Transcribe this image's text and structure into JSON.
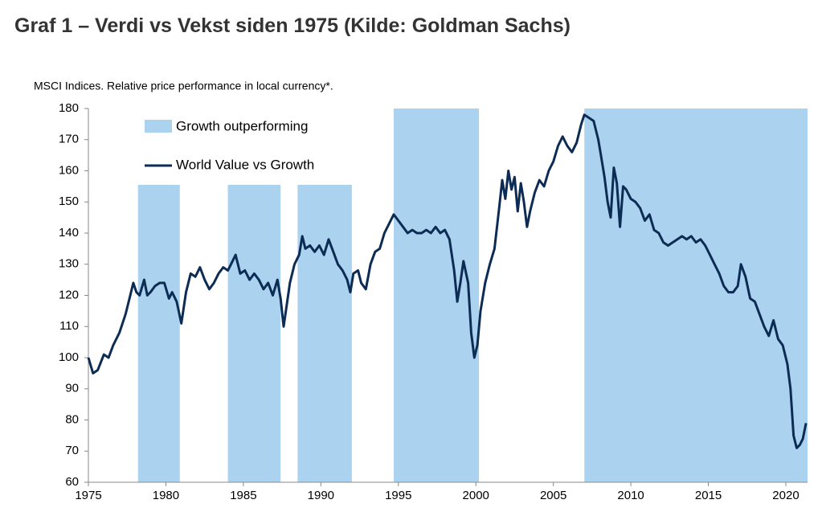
{
  "chart_data": {
    "type": "line",
    "title": "Graf 1 – Verdi vs Vekst siden 1975 (Kilde: Goldman Sachs)",
    "subtitle": "MSCI Indices. Relative price performance in local currency*.",
    "xlim": [
      1975,
      2021.4
    ],
    "xticks": [
      1975,
      1980,
      1985,
      1990,
      1995,
      2000,
      2005,
      2010,
      2015,
      2020
    ],
    "ylim": [
      60,
      180
    ],
    "yticks": [
      60,
      70,
      80,
      90,
      100,
      110,
      120,
      130,
      140,
      150,
      160,
      170,
      180
    ],
    "shaded": {
      "name": "Growth outperforming",
      "color": "#abd3ef",
      "periods": [
        {
          "start": 1978.2,
          "end": 1980.9,
          "top": 155.5
        },
        {
          "start": 1984,
          "end": 1987.4,
          "top": 155.5
        },
        {
          "start": 1988.5,
          "end": 1992,
          "top": 155.5
        },
        {
          "start": 1994.7,
          "end": 2000.2,
          "top": 180
        },
        {
          "start": 2007,
          "end": 2021.4,
          "top": 180
        }
      ]
    },
    "series": [
      {
        "name": "World Value vs Growth",
        "color": "#0d2c54",
        "x": [
          1975.0,
          1975.3,
          1975.6,
          1976.0,
          1976.3,
          1976.6,
          1977.0,
          1977.4,
          1977.7,
          1977.9,
          1978.1,
          1978.3,
          1978.6,
          1978.8,
          1979.0,
          1979.3,
          1979.6,
          1979.9,
          1980.2,
          1980.4,
          1980.7,
          1981.0,
          1981.3,
          1981.6,
          1981.9,
          1982.2,
          1982.5,
          1982.8,
          1983.1,
          1983.4,
          1983.7,
          1984.0,
          1984.3,
          1984.5,
          1984.8,
          1985.1,
          1985.4,
          1985.7,
          1986.0,
          1986.3,
          1986.6,
          1986.9,
          1987.2,
          1987.4,
          1987.6,
          1987.8,
          1988.0,
          1988.3,
          1988.6,
          1988.8,
          1989.0,
          1989.3,
          1989.6,
          1989.9,
          1990.2,
          1990.5,
          1990.8,
          1991.1,
          1991.4,
          1991.7,
          1991.9,
          1992.1,
          1992.4,
          1992.6,
          1992.9,
          1993.2,
          1993.5,
          1993.8,
          1994.1,
          1994.4,
          1994.7,
          1995.0,
          1995.3,
          1995.6,
          1995.9,
          1996.2,
          1996.5,
          1996.8,
          1997.1,
          1997.4,
          1997.7,
          1998.0,
          1998.3,
          1998.6,
          1998.8,
          1999.0,
          1999.2,
          1999.5,
          1999.7,
          1999.9,
          2000.1,
          2000.3,
          2000.6,
          2000.9,
          2001.2,
          2001.5,
          2001.7,
          2001.9,
          2002.1,
          2002.3,
          2002.5,
          2002.7,
          2002.9,
          2003.1,
          2003.3,
          2003.5,
          2003.8,
          2004.1,
          2004.4,
          2004.7,
          2005.0,
          2005.3,
          2005.6,
          2005.9,
          2006.2,
          2006.5,
          2006.8,
          2007.0,
          2007.3,
          2007.6,
          2007.9,
          2008.1,
          2008.3,
          2008.5,
          2008.7,
          2008.9,
          2009.1,
          2009.3,
          2009.5,
          2009.7,
          2010.0,
          2010.3,
          2010.6,
          2010.9,
          2011.2,
          2011.5,
          2011.8,
          2012.1,
          2012.4,
          2012.7,
          2013.0,
          2013.3,
          2013.6,
          2013.9,
          2014.2,
          2014.5,
          2014.8,
          2015.1,
          2015.4,
          2015.7,
          2016.0,
          2016.3,
          2016.6,
          2016.9,
          2017.1,
          2017.4,
          2017.7,
          2018.0,
          2018.3,
          2018.6,
          2018.9,
          2019.2,
          2019.5,
          2019.8,
          2020.1,
          2020.3,
          2020.5,
          2020.7,
          2020.9,
          2021.1,
          2021.3
        ],
        "values": [
          100,
          95,
          96,
          101,
          100,
          104,
          108,
          114,
          120,
          124,
          121,
          120,
          125,
          120,
          121,
          123,
          124,
          124,
          119,
          121,
          118,
          111,
          121,
          127,
          126,
          129,
          125,
          122,
          124,
          127,
          129,
          128,
          131,
          133,
          127,
          128,
          125,
          127,
          125,
          122,
          124,
          120,
          125,
          119,
          110,
          117,
          124,
          130,
          133,
          139,
          135,
          136,
          134,
          136,
          133,
          138,
          134,
          130,
          128,
          125,
          121,
          127,
          128,
          124,
          122,
          130,
          134,
          135,
          140,
          143,
          146,
          144,
          142,
          140,
          141,
          140,
          140,
          141,
          140,
          142,
          140,
          141,
          138,
          128,
          118,
          124,
          131,
          124,
          108,
          100,
          104,
          115,
          124,
          130,
          135,
          148,
          157,
          151,
          160,
          154,
          158,
          147,
          156,
          150,
          142,
          147,
          153,
          157,
          155,
          160,
          163,
          168,
          171,
          168,
          166,
          169,
          175,
          178,
          177,
          176,
          170,
          164,
          158,
          150,
          145,
          161,
          156,
          142,
          155,
          154,
          151,
          150,
          148,
          144,
          146,
          141,
          140,
          137,
          136,
          137,
          138,
          139,
          138,
          139,
          137,
          138,
          136,
          133,
          130,
          127,
          123,
          121,
          121,
          123,
          130,
          126,
          119,
          118,
          114,
          110,
          107,
          112,
          106,
          104,
          98,
          90,
          75,
          71,
          72,
          74,
          79
        ]
      }
    ]
  }
}
